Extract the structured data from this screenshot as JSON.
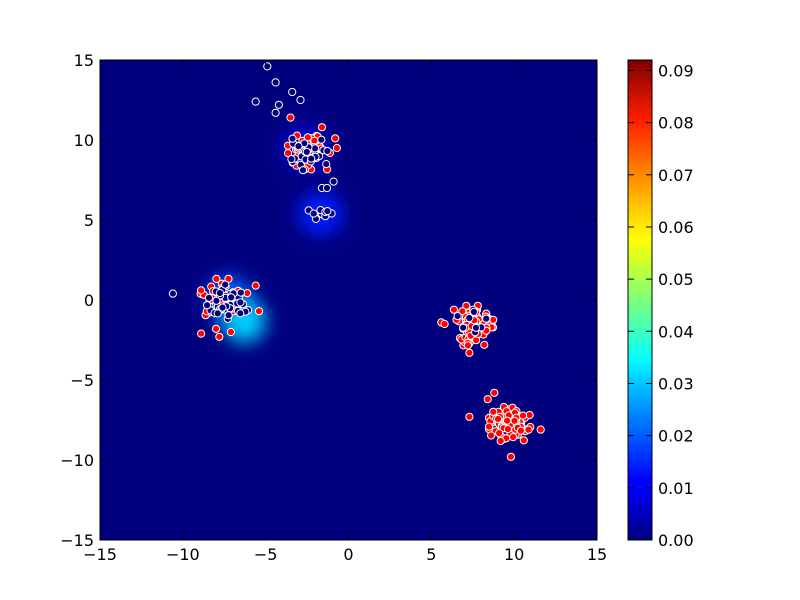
{
  "chart_data": {
    "type": "scatter",
    "title": "",
    "xlabel": "",
    "ylabel": "",
    "xlim": [
      -15,
      15
    ],
    "ylim": [
      -15,
      15
    ],
    "x_ticks": [
      -15,
      -10,
      -5,
      0,
      5,
      10,
      15
    ],
    "x_tick_labels": [
      "−15",
      "−10",
      "−5",
      "0",
      "5",
      "10",
      "15"
    ],
    "y_ticks": [
      -15,
      -10,
      -5,
      0,
      5,
      10,
      15
    ],
    "y_tick_labels": [
      "−15",
      "−10",
      "−5",
      "0",
      "5",
      "10",
      "15"
    ],
    "grid": false,
    "legend": "none",
    "background": {
      "type": "heatmap",
      "colormap": "jet",
      "base_color": "#00007f",
      "hotspots": [
        {
          "x": -2.7,
          "y": 9.5,
          "level": 0.008
        },
        {
          "x": -1.7,
          "y": 5.4,
          "level": 0.014
        },
        {
          "x": -7.2,
          "y": 0.1,
          "level": 0.02
        },
        {
          "x": -6.3,
          "y": -1.3,
          "level": 0.03
        }
      ]
    },
    "colorbar": {
      "min": 0.0,
      "max": 0.092,
      "ticks": [
        0.0,
        0.01,
        0.02,
        0.03,
        0.04,
        0.05,
        0.06,
        0.07,
        0.08,
        0.09
      ],
      "tick_labels": [
        "0.00",
        "0.01",
        "0.02",
        "0.03",
        "0.04",
        "0.05",
        "0.06",
        "0.07",
        "0.08",
        "0.09"
      ]
    },
    "series": [
      {
        "marker_fill": "#ff0000",
        "marker_edge": "#ffffff",
        "clusters": [
          {
            "cx": -2.5,
            "cy": 9.4,
            "sx": 1.0,
            "sy": 0.75,
            "n": 45,
            "seed": 11
          },
          {
            "cx": -7.6,
            "cy": 0.0,
            "sx": 0.9,
            "sy": 0.8,
            "n": 38,
            "seed": 12
          },
          {
            "cx": 7.6,
            "cy": -1.6,
            "sx": 0.75,
            "sy": 0.75,
            "n": 95,
            "seed": 13
          },
          {
            "cx": 9.8,
            "cy": -7.8,
            "sx": 0.8,
            "sy": 0.7,
            "n": 95,
            "seed": 14
          }
        ],
        "points": [
          [
            -3.5,
            11.4
          ],
          [
            -1.6,
            10.8
          ],
          [
            -0.8,
            10.1
          ],
          [
            -0.7,
            9.5
          ],
          [
            -8.9,
            0.6
          ],
          [
            -5.6,
            0.9
          ],
          [
            -5.4,
            -0.7
          ],
          [
            -8.9,
            -2.1
          ],
          [
            -7.8,
            -2.3
          ],
          [
            -8.0,
            -1.8
          ],
          [
            -7.1,
            -2.0
          ],
          [
            8.8,
            -5.8
          ],
          [
            8.4,
            -6.2
          ],
          [
            7.3,
            -7.3
          ],
          [
            9.8,
            -9.8
          ],
          [
            5.6,
            -1.4
          ],
          [
            5.8,
            -1.5
          ],
          [
            8.2,
            -2.8
          ],
          [
            7.3,
            -3.3
          ],
          [
            11.6,
            -8.1
          ]
        ]
      },
      {
        "marker_fill": "#00007f",
        "marker_edge": "#ffffff",
        "clusters": [
          {
            "cx": -2.6,
            "cy": 9.1,
            "sx": 0.9,
            "sy": 0.6,
            "n": 28,
            "seed": 21
          },
          {
            "cx": -7.3,
            "cy": -0.1,
            "sx": 0.75,
            "sy": 0.65,
            "n": 42,
            "seed": 22
          },
          {
            "cx": -1.6,
            "cy": 5.4,
            "sx": 0.35,
            "sy": 0.35,
            "n": 8,
            "seed": 23
          },
          {
            "cx": 7.5,
            "cy": -1.4,
            "sx": 0.6,
            "sy": 0.6,
            "n": 10,
            "seed": 24
          }
        ],
        "points": [
          [
            -4.9,
            14.6
          ],
          [
            -4.4,
            13.6
          ],
          [
            -3.4,
            13.0
          ],
          [
            -2.9,
            12.5
          ],
          [
            -4.2,
            12.2
          ],
          [
            -5.6,
            12.4
          ],
          [
            -4.4,
            11.7
          ],
          [
            -1.6,
            7.0
          ],
          [
            -1.3,
            7.0
          ],
          [
            -0.9,
            7.4
          ],
          [
            -2.4,
            5.6
          ],
          [
            -2.1,
            5.4
          ],
          [
            -10.6,
            0.4
          ]
        ]
      }
    ]
  }
}
